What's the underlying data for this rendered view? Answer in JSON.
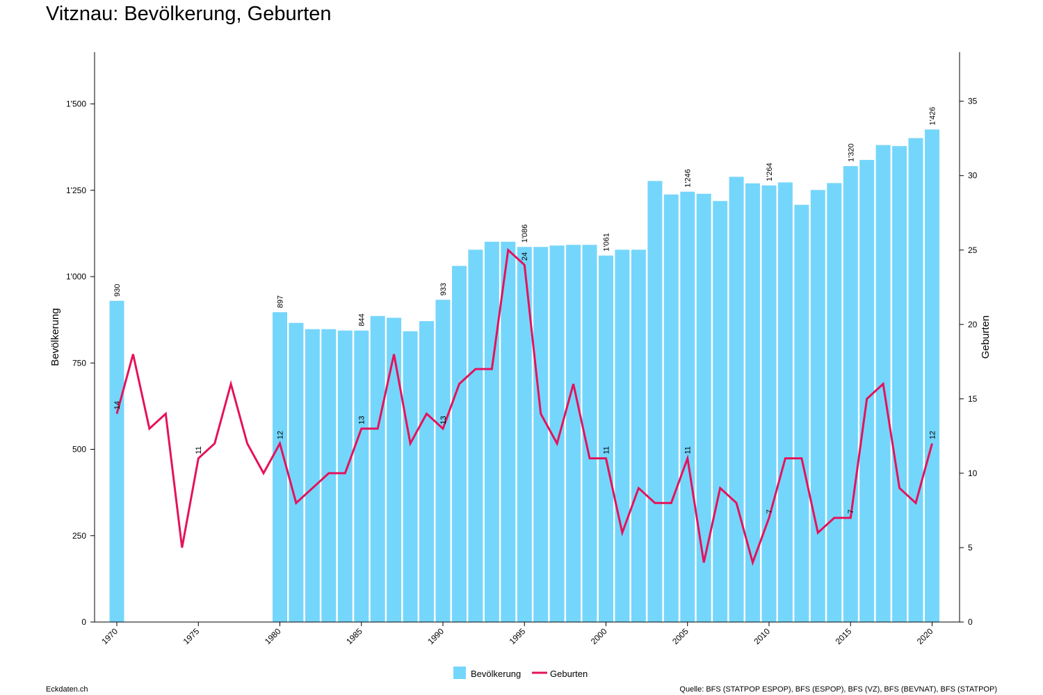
{
  "title": "Vitznau: Bevölkerung, Geburten",
  "footer": {
    "left": "Eckdaten.ch",
    "right": "Quelle: BFS (STATPOP ESPOP), BFS (ESPOP), BFS (VZ), BFS (BEVNAT), BFS (STATPOP)"
  },
  "colors": {
    "bars": "#75d6fb",
    "line": "#e5125b"
  },
  "chart_data": {
    "type": "bar+line",
    "x": [
      1970,
      1971,
      1972,
      1973,
      1974,
      1975,
      1976,
      1977,
      1978,
      1979,
      1980,
      1981,
      1982,
      1983,
      1984,
      1985,
      1986,
      1987,
      1988,
      1989,
      1990,
      1991,
      1992,
      1993,
      1994,
      1995,
      1996,
      1997,
      1998,
      1999,
      2000,
      2001,
      2002,
      2003,
      2004,
      2005,
      2006,
      2007,
      2008,
      2009,
      2010,
      2011,
      2012,
      2013,
      2014,
      2015,
      2016,
      2017,
      2018,
      2019,
      2020
    ],
    "x_ticks": [
      "1970",
      "1975",
      "1980",
      "1985",
      "1990",
      "1995",
      "2000",
      "2005",
      "2010",
      "2015",
      "2020"
    ],
    "x_tick_values": [
      1970,
      1975,
      1980,
      1985,
      1990,
      1995,
      2000,
      2005,
      2010,
      2015,
      2020
    ],
    "series": [
      {
        "name": "Bevölkerung",
        "type": "bar",
        "axis": "left",
        "values": [
          930,
          null,
          null,
          null,
          null,
          null,
          null,
          null,
          null,
          null,
          897,
          866,
          848,
          848,
          844,
          844,
          886,
          881,
          842,
          871,
          933,
          1031,
          1078,
          1101,
          1101,
          1086,
          1086,
          1090,
          1092,
          1092,
          1061,
          1078,
          1078,
          1277,
          1238,
          1246,
          1240,
          1219,
          1289,
          1270,
          1264,
          1273,
          1208,
          1251,
          1271,
          1320,
          1338,
          1381,
          1378,
          1401,
          1426
        ],
        "labels": [
          {
            "x": 1970,
            "text": "930"
          },
          {
            "x": 1980,
            "text": "897"
          },
          {
            "x": 1985,
            "text": "844"
          },
          {
            "x": 1990,
            "text": "933"
          },
          {
            "x": 1995,
            "text": "1'086"
          },
          {
            "x": 2000,
            "text": "1'061"
          },
          {
            "x": 2005,
            "text": "1'246"
          },
          {
            "x": 2010,
            "text": "1'264"
          },
          {
            "x": 2015,
            "text": "1'320"
          },
          {
            "x": 2020,
            "text": "1'426"
          }
        ]
      },
      {
        "name": "Geburten",
        "type": "line",
        "axis": "right",
        "values": [
          14,
          18,
          13,
          14,
          5,
          11,
          12,
          16,
          12,
          10,
          12,
          8,
          9,
          10,
          10,
          13,
          13,
          18,
          12,
          14,
          13,
          16,
          17,
          17,
          25,
          24,
          14,
          12,
          16,
          11,
          11,
          6,
          9,
          8,
          8,
          11,
          4,
          9,
          8,
          4,
          7,
          11,
          11,
          6,
          7,
          7,
          15,
          16,
          9,
          8,
          12
        ],
        "labels": [
          {
            "x": 1970,
            "text": "14"
          },
          {
            "x": 1975,
            "text": "11"
          },
          {
            "x": 1980,
            "text": "12"
          },
          {
            "x": 1985,
            "text": "13"
          },
          {
            "x": 1990,
            "text": "13"
          },
          {
            "x": 1995,
            "text": "24"
          },
          {
            "x": 2000,
            "text": "11"
          },
          {
            "x": 2005,
            "text": "11"
          },
          {
            "x": 2010,
            "text": "7"
          },
          {
            "x": 2015,
            "text": "7"
          },
          {
            "x": 2020,
            "text": "12"
          }
        ]
      }
    ],
    "y_left": {
      "label": "Bevölkerung",
      "lim": [
        0,
        1650
      ],
      "ticks": [
        0,
        250,
        500,
        750,
        1000,
        1250,
        1500
      ],
      "tick_labels": [
        "0",
        "250",
        "500",
        "750",
        "1'000",
        "1'250",
        "1'500"
      ]
    },
    "y_right": {
      "label": "Geburten",
      "lim": [
        0,
        38.3
      ],
      "ticks": [
        0,
        5,
        10,
        15,
        20,
        25,
        30,
        35
      ],
      "tick_labels": [
        "0",
        "5",
        "10",
        "15",
        "20",
        "25",
        "30",
        "35"
      ]
    },
    "grid": false,
    "legend": "bottom-center"
  }
}
